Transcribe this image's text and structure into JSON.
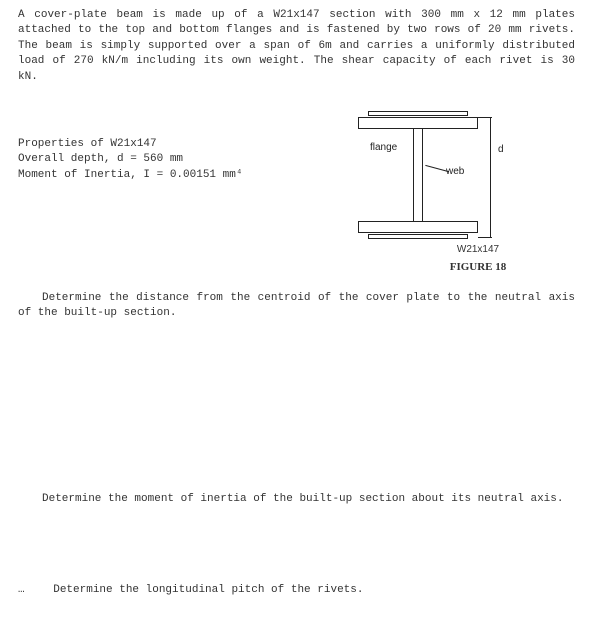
{
  "intro": "A cover-plate beam is made up of a W21x147 section with 300 mm x 12 mm plates attached to the top and bottom flanges and is fastened by two rows of 20 mm rivets. The beam is simply supported over a span of 6m and carries a uniformly distributed load of 270 kN/m including its own weight. The shear capacity of each rivet is 30 kN.",
  "properties": {
    "title": "Properties of W21x147",
    "depth": "Overall depth, d = 560 mm",
    "inertia": "Moment of Inertia, I = 0.00151 mm⁴"
  },
  "figure": {
    "flange_label": "flange",
    "web_label": "web",
    "d_label": "d",
    "section_name": "W21x147",
    "caption": "FIGURE 18",
    "colors": {
      "stroke": "#222222",
      "bg": "#ffffff"
    }
  },
  "questions": {
    "q1": "Determine the distance from the centroid of the cover plate to the neutral axis of the built-up section.",
    "q2": "Determine the moment of inertia of the built-up section about its neutral axis.",
    "q3": "Determine the longitudinal pitch of the rivets."
  }
}
